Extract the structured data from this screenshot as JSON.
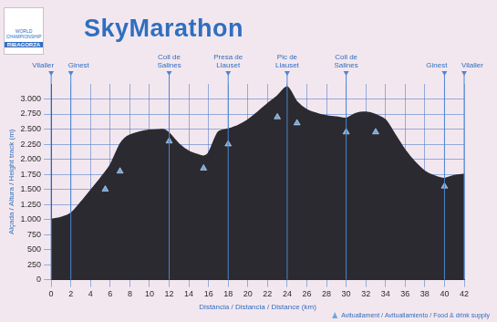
{
  "chart_data": {
    "type": "line",
    "title": "SkyMarathon",
    "logo_text": [
      "WORLD CHAMPIONSHIP",
      "RIBAGORZA"
    ],
    "x_label": "Distància / Distancia / Distance (km)",
    "y_label": "Alçada / Altura / Height track (m)",
    "x": [
      0,
      1,
      2,
      3,
      4,
      5,
      6,
      7,
      7.5,
      8,
      9,
      10,
      11,
      11.5,
      12,
      13,
      14,
      15,
      15.5,
      16,
      17,
      18,
      19,
      20,
      21,
      22,
      23,
      24,
      25,
      26,
      27,
      28,
      29,
      30,
      31,
      32,
      33,
      34,
      35,
      36,
      37,
      38,
      39,
      40,
      41,
      42
    ],
    "values": [
      1000,
      1030,
      1100,
      1280,
      1480,
      1680,
      1900,
      2250,
      2350,
      2400,
      2450,
      2480,
      2490,
      2490,
      2430,
      2250,
      2130,
      2070,
      2050,
      2100,
      2450,
      2500,
      2560,
      2650,
      2780,
      2920,
      3050,
      3200,
      2950,
      2820,
      2760,
      2720,
      2700,
      2680,
      2760,
      2780,
      2740,
      2650,
      2400,
      2150,
      1950,
      1800,
      1720,
      1680,
      1730,
      1750
    ],
    "color": "#2b2a30",
    "xlim": [
      0,
      42
    ],
    "xticks": [
      0,
      2,
      4,
      6,
      8,
      10,
      12,
      14,
      16,
      18,
      20,
      22,
      24,
      26,
      28,
      30,
      32,
      34,
      36,
      38,
      40,
      42
    ],
    "ylim": [
      0,
      3250
    ],
    "yticks": [
      0,
      250,
      500,
      750,
      {
        "value": 1000,
        "label": "1.000"
      },
      {
        "value": 1250,
        "label": "1.250"
      },
      {
        "value": 1500,
        "label": "1.500"
      },
      {
        "value": 1750,
        "label": "1.750"
      },
      {
        "value": 2000,
        "label": "2.000"
      },
      {
        "value": 2250,
        "label": "2.250"
      },
      {
        "value": 2500,
        "label": "2.500"
      },
      {
        "value": 2750,
        "label": "2.750"
      },
      {
        "value": 3000,
        "label": "3.000"
      }
    ],
    "grid": true,
    "annotations": [
      {
        "x": 0,
        "label": "Vilaller"
      },
      {
        "x": 2,
        "label": "Ginest"
      },
      {
        "x": 12,
        "label": "Coll de Salines"
      },
      {
        "x": 18,
        "label": "Presa de Llauset"
      },
      {
        "x": 24,
        "label": "Pic de Llauset"
      },
      {
        "x": 30,
        "label": "Coll de Salines"
      },
      {
        "x": 40,
        "label": "Ginest"
      },
      {
        "x": 42,
        "label": "Vilaller"
      }
    ],
    "food_supply": {
      "label": "Avituallament / Avituallamiento / Food & drink supply",
      "x": [
        5.5,
        7,
        12,
        15.5,
        18,
        23,
        25,
        30,
        33,
        40
      ],
      "y": [
        1500,
        1800,
        2300,
        1850,
        2250,
        2700,
        2600,
        2450,
        2450,
        1550
      ],
      "color": "#6aa8e8",
      "marker": "triangle"
    }
  }
}
